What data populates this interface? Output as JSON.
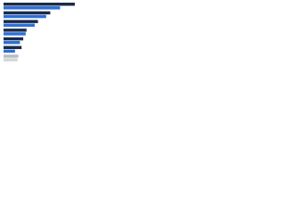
{
  "chart_data": {
    "type": "hbar",
    "categories": [
      null,
      null,
      null,
      null,
      null,
      null,
      null
    ],
    "series": [
      {
        "color": "#1b2a4a",
        "values": [
          87,
          57,
          42,
          28,
          24,
          22,
          18
        ],
        "colors": [
          "#1b2a4a",
          "#1b2a4a",
          "#1b2a4a",
          "#1b2a4a",
          "#1b2a4a",
          "#1b2a4a",
          "#b9bdc4"
        ]
      },
      {
        "color": "#2d6fd6",
        "values": [
          69,
          52,
          38,
          27,
          20,
          14,
          17
        ],
        "colors": [
          "#2d6fd6",
          "#2d6fd6",
          "#2d6fd6",
          "#2d6fd6",
          "#2d6fd6",
          "#2d6fd6",
          "#d3d6db"
        ]
      }
    ],
    "xlim": [
      0,
      100
    ]
  }
}
